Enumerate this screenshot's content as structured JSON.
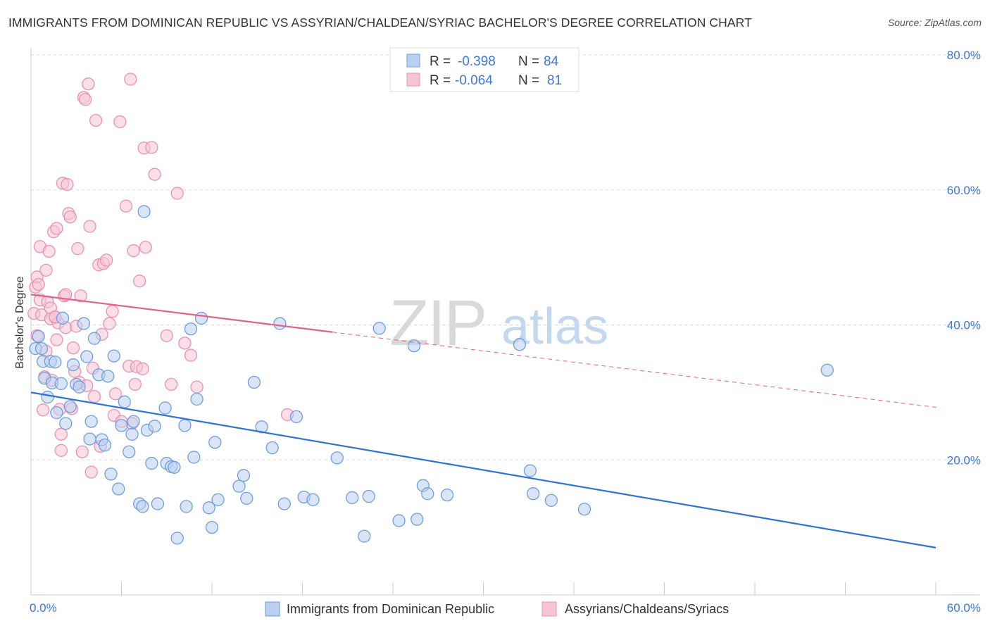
{
  "title": "IMMIGRANTS FROM DOMINICAN REPUBLIC VS ASSYRIAN/CHALDEAN/SYRIAC BACHELOR'S DEGREE CORRELATION CHART",
  "source": "Source: ZipAtlas.com",
  "watermark": {
    "zip": "ZIP",
    "atlas": "atlas"
  },
  "colors": {
    "blue": "#6f9fdc",
    "blue_fill": "#b9d0f0",
    "blue_line": "#2f73d3",
    "pink": "#ea92b0",
    "pink_fill": "#f6c5d5",
    "pink_line": "#e3608a",
    "axis_text": "#3b78d8",
    "grid": "#dddddd"
  },
  "legend": {
    "rows": [
      {
        "r_label": "R = ",
        "r_value": "-0.398",
        "n_label": "N = ",
        "n_value": "84"
      },
      {
        "r_label": "R = ",
        "r_value": "-0.064",
        "n_label": "N = ",
        "n_value": "81"
      }
    ]
  },
  "chart_data": {
    "type": "scatter",
    "title": "IMMIGRANTS FROM DOMINICAN REPUBLIC VS ASSYRIAN/CHALDEAN/SYRIAC BACHELOR'S DEGREE CORRELATION CHART",
    "xlabel": "",
    "ylabel": "Bachelor's Degree",
    "xlim": [
      0,
      60
    ],
    "ylim": [
      0,
      80
    ],
    "x_tick_labels": [
      "0.0%",
      "60.0%"
    ],
    "y_ticks": [
      20,
      40,
      60,
      80
    ],
    "y_tick_labels": [
      "20.0%",
      "40.0%",
      "60.0%",
      "80.0%"
    ],
    "grid": true,
    "legend_position": "bottom",
    "series": [
      {
        "name": "Immigrants from Dominican Republic",
        "color": "blue",
        "r": -0.398,
        "n": 84,
        "trend": {
          "x": [
            0,
            60
          ],
          "y": [
            30.0,
            7.0
          ],
          "extrapolated_from": null
        },
        "points": [
          [
            0.3,
            36.5
          ],
          [
            0.5,
            38.3
          ],
          [
            0.7,
            36.5
          ],
          [
            0.8,
            34.6
          ],
          [
            0.9,
            32.1
          ],
          [
            1.1,
            29.3
          ],
          [
            1.3,
            34.6
          ],
          [
            1.4,
            31.4
          ],
          [
            1.6,
            34.5
          ],
          [
            1.7,
            27.0
          ],
          [
            2.0,
            31.3
          ],
          [
            2.1,
            41.0
          ],
          [
            2.3,
            25.4
          ],
          [
            2.6,
            27.9
          ],
          [
            2.8,
            34.1
          ],
          [
            3.0,
            31.2
          ],
          [
            3.2,
            30.8
          ],
          [
            3.5,
            40.2
          ],
          [
            3.7,
            35.3
          ],
          [
            3.9,
            23.1
          ],
          [
            4.0,
            25.7
          ],
          [
            4.2,
            38.0
          ],
          [
            4.5,
            32.6
          ],
          [
            4.7,
            23.0
          ],
          [
            4.9,
            22.2
          ],
          [
            5.1,
            32.4
          ],
          [
            5.3,
            17.9
          ],
          [
            5.5,
            35.4
          ],
          [
            5.8,
            15.7
          ],
          [
            6.0,
            25.1
          ],
          [
            6.2,
            28.6
          ],
          [
            6.5,
            21.2
          ],
          [
            6.7,
            23.8
          ],
          [
            6.8,
            25.7
          ],
          [
            7.2,
            13.5
          ],
          [
            7.4,
            13.1
          ],
          [
            7.7,
            24.4
          ],
          [
            8.0,
            19.5
          ],
          [
            8.2,
            25.0
          ],
          [
            8.4,
            13.5
          ],
          [
            8.9,
            27.7
          ],
          [
            9.0,
            19.5
          ],
          [
            9.3,
            19.0
          ],
          [
            9.5,
            18.9
          ],
          [
            9.7,
            8.4
          ],
          [
            10.2,
            25.1
          ],
          [
            10.3,
            13.1
          ],
          [
            10.6,
            39.4
          ],
          [
            10.8,
            20.4
          ],
          [
            11.0,
            29.0
          ],
          [
            11.3,
            41.0
          ],
          [
            11.8,
            12.9
          ],
          [
            12.0,
            10.0
          ],
          [
            12.2,
            22.6
          ],
          [
            12.4,
            14.1
          ],
          [
            13.8,
            16.1
          ],
          [
            14.1,
            17.7
          ],
          [
            14.3,
            14.3
          ],
          [
            14.8,
            31.5
          ],
          [
            15.3,
            24.9
          ],
          [
            16.0,
            21.8
          ],
          [
            16.5,
            40.2
          ],
          [
            16.8,
            13.5
          ],
          [
            17.6,
            26.4
          ],
          [
            18.1,
            14.5
          ],
          [
            18.7,
            14.1
          ],
          [
            20.3,
            20.3
          ],
          [
            21.3,
            14.4
          ],
          [
            22.1,
            8.7
          ],
          [
            22.4,
            14.6
          ],
          [
            23.1,
            39.5
          ],
          [
            24.4,
            11.0
          ],
          [
            25.4,
            36.9
          ],
          [
            25.6,
            11.2
          ],
          [
            26.0,
            16.2
          ],
          [
            26.3,
            15.0
          ],
          [
            27.6,
            14.8
          ],
          [
            32.4,
            37.1
          ],
          [
            33.1,
            18.4
          ],
          [
            33.3,
            15.0
          ],
          [
            34.5,
            14.0
          ],
          [
            36.7,
            12.7
          ],
          [
            52.8,
            33.3
          ],
          [
            7.5,
            56.8
          ]
        ]
      },
      {
        "name": "Assyrians/Chaldeans/Syriacs",
        "color": "pink",
        "r": -0.064,
        "n": 81,
        "trend": {
          "x": [
            0,
            60
          ],
          "y": [
            44.5,
            27.8
          ],
          "solid_until_x": 20.0
        },
        "points": [
          [
            0.2,
            41.7
          ],
          [
            0.3,
            45.6
          ],
          [
            0.4,
            47.1
          ],
          [
            0.4,
            38.4
          ],
          [
            0.5,
            46.0
          ],
          [
            0.6,
            43.7
          ],
          [
            0.6,
            51.6
          ],
          [
            0.7,
            41.5
          ],
          [
            0.8,
            27.4
          ],
          [
            0.9,
            32.3
          ],
          [
            1.0,
            48.1
          ],
          [
            1.0,
            36.1
          ],
          [
            1.1,
            43.4
          ],
          [
            1.2,
            50.9
          ],
          [
            1.3,
            42.5
          ],
          [
            1.3,
            40.9
          ],
          [
            1.4,
            31.8
          ],
          [
            1.5,
            53.8
          ],
          [
            1.6,
            41.1
          ],
          [
            1.7,
            37.8
          ],
          [
            1.7,
            54.3
          ],
          [
            1.8,
            40.3
          ],
          [
            1.9,
            27.5
          ],
          [
            2.0,
            21.4
          ],
          [
            2.0,
            23.8
          ],
          [
            2.1,
            61.0
          ],
          [
            2.2,
            44.3
          ],
          [
            2.3,
            39.6
          ],
          [
            2.4,
            60.8
          ],
          [
            2.5,
            56.5
          ],
          [
            2.6,
            56.0
          ],
          [
            2.7,
            27.6
          ],
          [
            2.8,
            36.6
          ],
          [
            2.9,
            33.1
          ],
          [
            3.1,
            51.3
          ],
          [
            3.2,
            31.5
          ],
          [
            3.3,
            44.3
          ],
          [
            3.4,
            21.2
          ],
          [
            3.5,
            73.7
          ],
          [
            3.6,
            73.4
          ],
          [
            3.8,
            75.7
          ],
          [
            3.9,
            54.6
          ],
          [
            4.0,
            18.2
          ],
          [
            4.1,
            33.6
          ],
          [
            4.2,
            29.4
          ],
          [
            4.3,
            70.3
          ],
          [
            4.5,
            48.9
          ],
          [
            4.7,
            38.6
          ],
          [
            4.8,
            49.1
          ],
          [
            5.0,
            49.6
          ],
          [
            5.4,
            42.0
          ],
          [
            5.5,
            26.6
          ],
          [
            5.6,
            29.8
          ],
          [
            5.9,
            70.1
          ],
          [
            6.0,
            25.7
          ],
          [
            6.3,
            57.6
          ],
          [
            6.5,
            33.9
          ],
          [
            6.6,
            76.4
          ],
          [
            6.7,
            25.4
          ],
          [
            6.8,
            51.0
          ],
          [
            6.9,
            31.2
          ],
          [
            7.0,
            33.8
          ],
          [
            7.2,
            46.5
          ],
          [
            7.4,
            33.5
          ],
          [
            7.5,
            66.2
          ],
          [
            7.6,
            51.5
          ],
          [
            8.0,
            66.3
          ],
          [
            8.2,
            62.3
          ],
          [
            9.0,
            38.4
          ],
          [
            9.3,
            31.2
          ],
          [
            9.7,
            59.5
          ],
          [
            10.2,
            37.3
          ],
          [
            10.6,
            35.5
          ],
          [
            11.0,
            30.8
          ],
          [
            17.0,
            26.7
          ],
          [
            1.6,
            41.2
          ],
          [
            2.3,
            44.5
          ],
          [
            3.0,
            39.8
          ],
          [
            3.7,
            31.0
          ],
          [
            4.6,
            22.0
          ],
          [
            5.2,
            40.2
          ]
        ]
      }
    ]
  }
}
